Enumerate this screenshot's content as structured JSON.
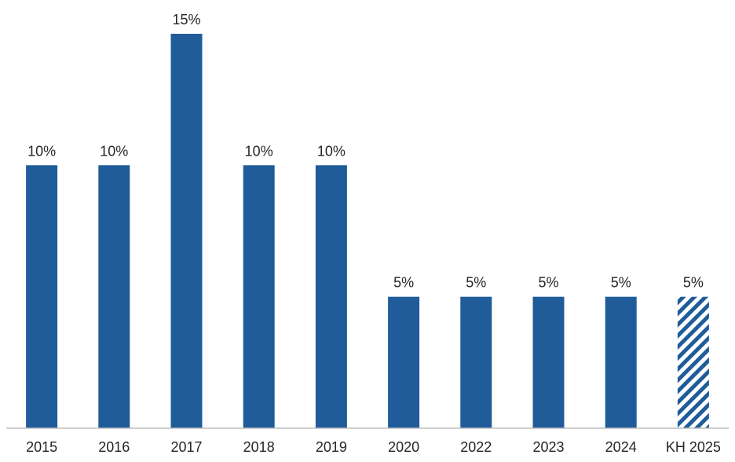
{
  "chart_data": {
    "type": "bar",
    "title": "",
    "xlabel": "",
    "ylabel": "",
    "categories": [
      "2015",
      "2016",
      "2017",
      "2018",
      "2019",
      "2020",
      "2022",
      "2023",
      "2024",
      "KH 2025"
    ],
    "values": [
      10,
      10,
      15,
      10,
      10,
      5,
      5,
      5,
      5,
      5
    ],
    "data_labels": [
      "10%",
      "10%",
      "15%",
      "10%",
      "10%",
      "5%",
      "5%",
      "5%",
      "5%",
      "5%"
    ],
    "planned": [
      false,
      false,
      false,
      false,
      false,
      false,
      false,
      false,
      false,
      true
    ],
    "ylim": [
      0,
      15
    ],
    "grid": false,
    "legend": "none",
    "colors": {
      "bar": "#1F5C99",
      "axis": "#BFBFBF",
      "text": "#262626"
    }
  }
}
